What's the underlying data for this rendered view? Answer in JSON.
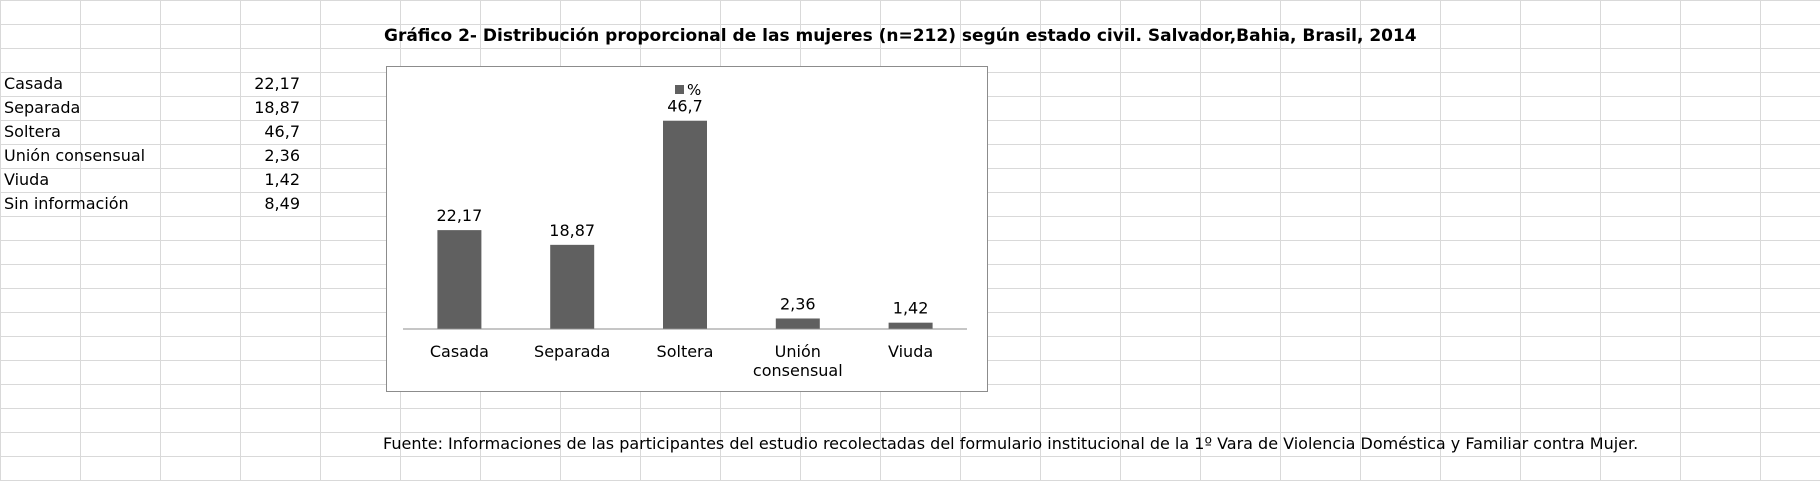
{
  "sheet": {
    "rows": [
      {
        "label": "Casada",
        "value": "22,17"
      },
      {
        "label": "Separada",
        "value": "18,87"
      },
      {
        "label": "Soltera",
        "value": "46,7"
      },
      {
        "label": "Unión consensual",
        "value": "2,36"
      },
      {
        "label": "Viuda",
        "value": "1,42"
      },
      {
        "label": "Sin información",
        "value": "8,49"
      }
    ]
  },
  "chart_data": {
    "type": "bar",
    "title": "Gráfico 2- Distribución proporcional de las mujeres (n=212) según estado civil. Salvador,Bahia, Brasil, 2014",
    "categories": [
      "Casada",
      "Separada",
      "Soltera",
      "Unión consensual",
      "Viuda"
    ],
    "series": [
      {
        "name": "%",
        "values": [
          22.17,
          18.87,
          46.7,
          2.36,
          1.42
        ]
      }
    ],
    "data_labels": [
      "22,17",
      "18,87",
      "46,7",
      "2,36",
      "1,42"
    ],
    "xlabel": "",
    "ylabel": "",
    "ylim": [
      0,
      50
    ],
    "legend": "top-center",
    "grid": false,
    "bar_color": "#606060"
  },
  "source_note": "Fuente: Informaciones de las participantes del estudio recolectadas del formulario institucional de la 1º Vara de Violencia Doméstica y Familiar contra Mujer."
}
